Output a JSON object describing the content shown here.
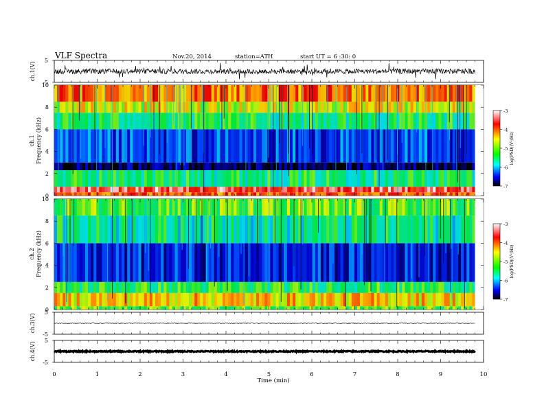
{
  "header": {
    "title": "VLF  Spectra",
    "date": "Nov.20, 2014",
    "station": "station=ATH",
    "start": "start  UT  =   6  :30: 0"
  },
  "x_axis": {
    "label": "Time  (min)",
    "ticks": [
      "0",
      "1",
      "2",
      "3",
      "4",
      "5",
      "6",
      "7",
      "8",
      "9",
      "10"
    ]
  },
  "panels": {
    "ch1_wave": {
      "ylabel": "ch.1(V)",
      "ticks": [
        "5",
        "-5"
      ]
    },
    "ch1_spec": {
      "ylabel": "ch.1",
      "ylabel2": "Frequency  (kHz)",
      "ticks": [
        "10",
        "8",
        "6",
        "4",
        "2",
        "0"
      ]
    },
    "ch2_spec": {
      "ylabel": "ch.2",
      "ylabel2": "Frequency  (kHz)",
      "ticks": [
        "10",
        "8",
        "6",
        "4",
        "2",
        "0"
      ]
    },
    "ch3_wave": {
      "ylabel": "ch.3(V)",
      "ticks": [
        "5",
        "-5"
      ]
    },
    "ch4_wave": {
      "ylabel": "ch.4(V)",
      "ticks": [
        "5",
        "-5"
      ]
    }
  },
  "colorbar": {
    "label": "log(PSD)(V²/Hz)",
    "ticks": [
      "-3",
      "-4",
      "-5",
      "-6",
      "-7"
    ],
    "colors": [
      "#ffffff",
      "#ff0000",
      "#ffff00",
      "#00ff00",
      "#00ffff",
      "#0000ff",
      "#000000"
    ]
  },
  "chart_data": [
    {
      "type": "line",
      "title": "ch.1(V)",
      "xlabel": "Time  (min)",
      "ylabel": "ch.1(V)",
      "xlim": [
        0,
        10
      ],
      "ylim": [
        -5,
        5
      ],
      "data_xlim": [
        0,
        9.8
      ],
      "baseline": 0,
      "noise_amplitude": 1.2
    },
    {
      "type": "heatmap",
      "title": "ch.1",
      "xlabel": "Time  (min)",
      "ylabel": "Frequency  (kHz)",
      "xlim": [
        0,
        10
      ],
      "ylim": [
        0,
        10
      ],
      "colorbar_range": [
        -7,
        -3
      ],
      "bands": [
        {
          "from": 0,
          "to": 0.3,
          "logpsd": -4
        },
        {
          "from": 0.3,
          "to": 0.8,
          "logpsd": -3.5
        },
        {
          "from": 0.8,
          "to": 2.3,
          "logpsd": -5.3
        },
        {
          "from": 2.3,
          "to": 3,
          "logpsd": -6.8
        },
        {
          "from": 3,
          "to": 6,
          "logpsd": -6.2
        },
        {
          "from": 6,
          "to": 7.5,
          "logpsd": -5.3
        },
        {
          "from": 7.5,
          "to": 8.5,
          "logpsd": -4.6
        },
        {
          "from": 8.5,
          "to": 10,
          "logpsd": -4.1
        }
      ]
    },
    {
      "type": "heatmap",
      "title": "ch.2",
      "xlabel": "Time  (min)",
      "ylabel": "Frequency  (kHz)",
      "xlim": [
        0,
        10
      ],
      "ylim": [
        0,
        10
      ],
      "colorbar_range": [
        -7,
        -3
      ],
      "bands": [
        {
          "from": 0,
          "to": 0.3,
          "logpsd": -5
        },
        {
          "from": 0.3,
          "to": 1.5,
          "logpsd": -4.4
        },
        {
          "from": 1.5,
          "to": 2.5,
          "logpsd": -5.2
        },
        {
          "from": 2.5,
          "to": 6,
          "logpsd": -6.3
        },
        {
          "from": 6,
          "to": 8.5,
          "logpsd": -5.4
        },
        {
          "from": 8.5,
          "to": 10,
          "logpsd": -5
        }
      ]
    },
    {
      "type": "line",
      "title": "ch.3(V)",
      "xlabel": "Time  (min)",
      "ylabel": "ch.3(V)",
      "xlim": [
        0,
        10
      ],
      "ylim": [
        -5,
        5
      ],
      "data_xlim": [
        0,
        9.8
      ],
      "baseline": 0,
      "noise_amplitude": 0.15
    },
    {
      "type": "line",
      "title": "ch.4(V)",
      "xlabel": "Time  (min)",
      "ylabel": "ch.4(V)",
      "xlim": [
        0,
        10
      ],
      "ylim": [
        -5,
        5
      ],
      "data_xlim": [
        0,
        9.8
      ],
      "baseline": 0,
      "noise_amplitude": 0.25
    }
  ]
}
